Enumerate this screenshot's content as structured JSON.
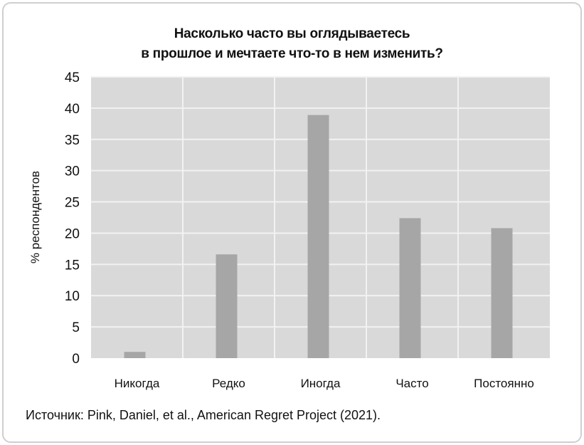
{
  "chart_data": {
    "type": "bar",
    "title_line1": "Насколько часто вы оглядываетесь",
    "title_line2": "в прошлое и мечтаете что-то в нем изменить?",
    "xlabel": "",
    "ylabel": "% респондентов",
    "categories": [
      "Никогда",
      "Редко",
      "Иногда",
      "Часто",
      "Постоянно"
    ],
    "values": [
      1,
      16.6,
      38.9,
      22.4,
      20.8
    ],
    "ylim": [
      0,
      45
    ],
    "yticks": [
      "0",
      "5",
      "10",
      "15",
      "20",
      "25",
      "30",
      "35",
      "40",
      "45"
    ],
    "grid": true,
    "colors": {
      "bar": "#a6a6a6",
      "plot_bg": "#d9d9d9",
      "grid": "#f2f2f2"
    }
  },
  "source": "Источник: Pink, Daniel, et al., American Regret Project (2021)."
}
